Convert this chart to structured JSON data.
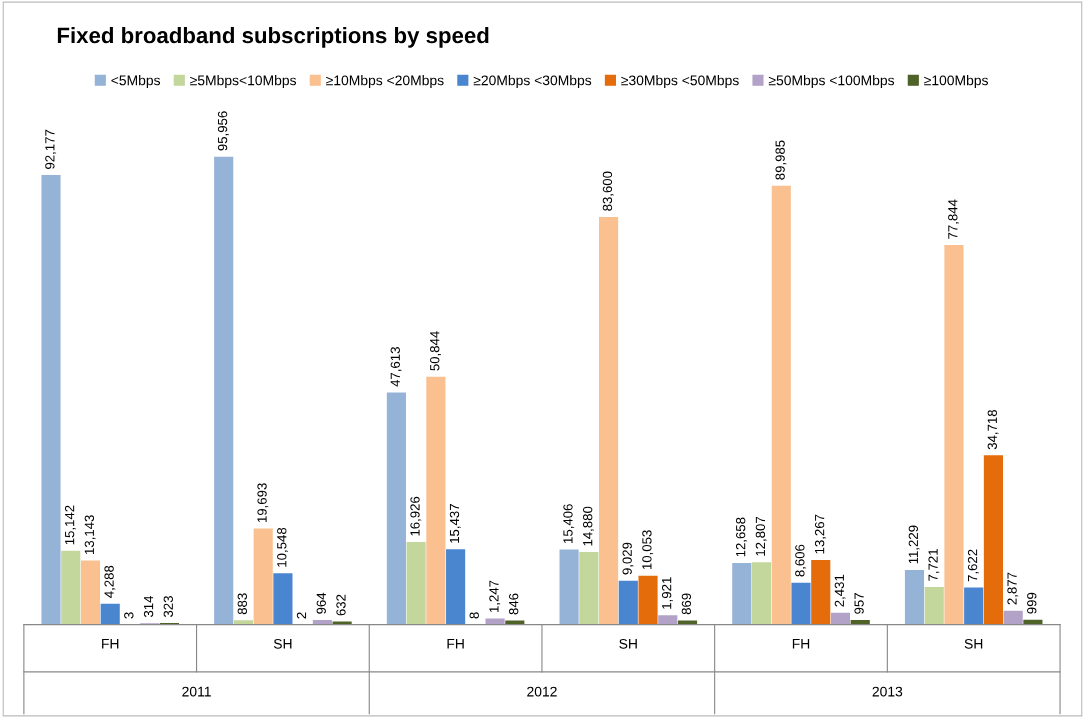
{
  "chart_data": {
    "type": "bar",
    "title": "Fixed broadband subscriptions by speed",
    "categories": [
      "FH",
      "SH",
      "FH",
      "SH",
      "FH",
      "SH"
    ],
    "annotations": [
      "2011",
      "2012",
      "2013"
    ],
    "series": [
      {
        "name": "<5Mbps",
        "color": "#95b3d7",
        "values": [
          92177,
          95956,
          47613,
          15406,
          12658,
          11229
        ],
        "value_labels": [
          "92,177",
          "95,956",
          "47,613",
          "15,406",
          "12,658",
          "11,229"
        ]
      },
      {
        "name": "≥5Mbps<10Mbps",
        "color": "#c3d69b",
        "values": [
          15142,
          883,
          16926,
          14880,
          12807,
          7721
        ],
        "value_labels": [
          "15,142",
          "883",
          "16,926",
          "14,880",
          "12,807",
          "7,721"
        ]
      },
      {
        "name": "≥10Mbps <20Mbps",
        "color": "#fac090",
        "values": [
          13143,
          19693,
          50844,
          83600,
          89985,
          77844
        ],
        "value_labels": [
          "13,143",
          "19,693",
          "50,844",
          "83,600",
          "89,985",
          "77,844"
        ]
      },
      {
        "name": "≥20Mbps <30Mbps",
        "color": "#4a86d0",
        "values": [
          4288,
          10548,
          15437,
          9029,
          8606,
          7622
        ],
        "value_labels": [
          "4,288",
          "10,548",
          "15,437",
          "9,029",
          "8,606",
          "7,622"
        ]
      },
      {
        "name": "≥30Mbps <50Mbps",
        "color": "#e46c0a",
        "values": [
          3,
          2,
          8,
          10053,
          13267,
          34718
        ],
        "value_labels": [
          "3",
          "2",
          "8",
          "10,053",
          "13,267",
          "34,718"
        ]
      },
      {
        "name": "≥50Mbps <100Mbps",
        "color": "#b3a2c7",
        "values": [
          314,
          964,
          1247,
          1921,
          2431,
          2877
        ],
        "value_labels": [
          "314",
          "964",
          "1,247",
          "1,921",
          "2,431",
          "2,877"
        ]
      },
      {
        "name": "≥100Mbps",
        "color": "#4f6228",
        "values": [
          323,
          632,
          846,
          869,
          957,
          999
        ],
        "value_labels": [
          "323",
          "632",
          "846",
          "869",
          "957",
          "999"
        ]
      }
    ],
    "legend": "top",
    "grid": false
  }
}
